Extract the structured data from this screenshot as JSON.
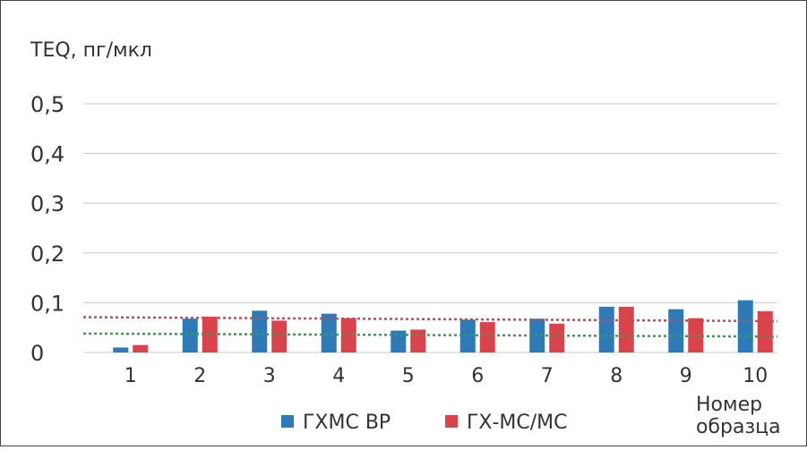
{
  "chart_data": {
    "type": "bar",
    "ylabel": "TEQ, пг/мкл",
    "xlabel": "Номер образца",
    "categories": [
      "1",
      "2",
      "3",
      "4",
      "5",
      "6",
      "7",
      "8",
      "9",
      "10"
    ],
    "ytick_labels": [
      "0",
      "0,1",
      "0,2",
      "0,3",
      "0,4",
      "0,5"
    ],
    "yticks": [
      0,
      0.1,
      0.2,
      0.3,
      0.4,
      0.5
    ],
    "ylim": [
      0,
      0.5
    ],
    "grid": true,
    "legend_position": "bottom",
    "series": [
      {
        "name": "ГХМС ВР",
        "color": "#2e7ab6",
        "values": [
          0.01,
          0.068,
          0.084,
          0.078,
          0.044,
          0.066,
          0.068,
          0.092,
          0.087,
          0.105
        ]
      },
      {
        "name": "ГХ-МС/МС",
        "color": "#d9434b",
        "values": [
          0.015,
          0.072,
          0.064,
          0.069,
          0.046,
          0.061,
          0.058,
          0.092,
          0.069,
          0.083
        ]
      }
    ],
    "trendlines": [
      {
        "series": "ГХ-МС/МС",
        "color": "#d9434b",
        "style": "dotted",
        "values": [
          0.071,
          0.063
        ]
      },
      {
        "series": "ГХМС ВР",
        "color": "#27a844",
        "style": "dotted",
        "values": [
          0.038,
          0.032
        ]
      }
    ]
  }
}
